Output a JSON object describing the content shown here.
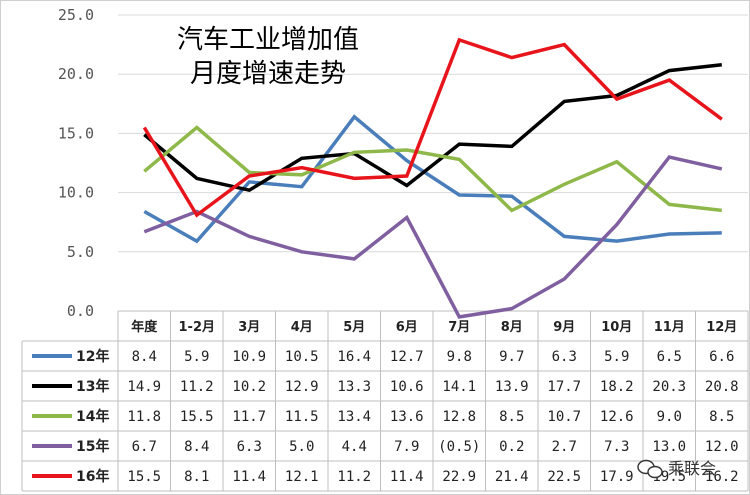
{
  "chart_data": {
    "type": "line",
    "title_lines": [
      "汽车工业增加值",
      "月度增速走势"
    ],
    "ylim": [
      0,
      25
    ],
    "y_ticks": [
      "0.0",
      "5.0",
      "10.0",
      "15.0",
      "20.0",
      "25.0"
    ],
    "categories": [
      "年度",
      "1-2月",
      "3月",
      "4月",
      "5月",
      "6月",
      "7月",
      "8月",
      "9月",
      "10月",
      "11月",
      "12月"
    ],
    "series": [
      {
        "name": "12年",
        "color": "#4a7ebb",
        "values": [
          8.4,
          5.9,
          10.9,
          10.5,
          16.4,
          12.7,
          9.8,
          9.7,
          6.3,
          5.9,
          6.5,
          6.6
        ],
        "labels": [
          "8.4",
          "5.9",
          "10.9",
          "10.5",
          "16.4",
          "12.7",
          "9.8",
          "9.7",
          "6.3",
          "5.9",
          "6.5",
          "6.6"
        ]
      },
      {
        "name": "13年",
        "color": "#000000",
        "values": [
          14.9,
          11.2,
          10.2,
          12.9,
          13.3,
          10.6,
          14.1,
          13.9,
          17.7,
          18.2,
          20.3,
          20.8
        ],
        "labels": [
          "14.9",
          "11.2",
          "10.2",
          "12.9",
          "13.3",
          "10.6",
          "14.1",
          "13.9",
          "17.7",
          "18.2",
          "20.3",
          "20.8"
        ]
      },
      {
        "name": "14年",
        "color": "#8fb84a",
        "values": [
          11.8,
          15.5,
          11.7,
          11.5,
          13.4,
          13.6,
          12.8,
          8.5,
          10.7,
          12.6,
          9.0,
          8.5
        ],
        "labels": [
          "11.8",
          "15.5",
          "11.7",
          "11.5",
          "13.4",
          "13.6",
          "12.8",
          "8.5",
          "10.7",
          "12.6",
          "9.0",
          "8.5"
        ]
      },
      {
        "name": "15年",
        "color": "#7f5fa0",
        "values": [
          6.7,
          8.4,
          6.3,
          5.0,
          4.4,
          7.9,
          -0.5,
          0.2,
          2.7,
          7.3,
          13.0,
          12.0
        ],
        "labels": [
          "6.7",
          "8.4",
          "6.3",
          "5.0",
          "4.4",
          "7.9",
          "(0.5)",
          "0.2",
          "2.7",
          "7.3",
          "13.0",
          "12.0"
        ]
      },
      {
        "name": "16年",
        "color": "#e8141b",
        "values": [
          15.5,
          8.1,
          11.4,
          12.1,
          11.2,
          11.4,
          22.9,
          21.4,
          22.5,
          17.9,
          19.5,
          16.2
        ],
        "labels": [
          "15.5",
          "8.1",
          "11.4",
          "12.1",
          "11.2",
          "11.4",
          "22.9",
          "21.4",
          "22.5",
          "17.9",
          "19.5",
          "16.2"
        ]
      }
    ]
  },
  "watermark": "乘联会"
}
